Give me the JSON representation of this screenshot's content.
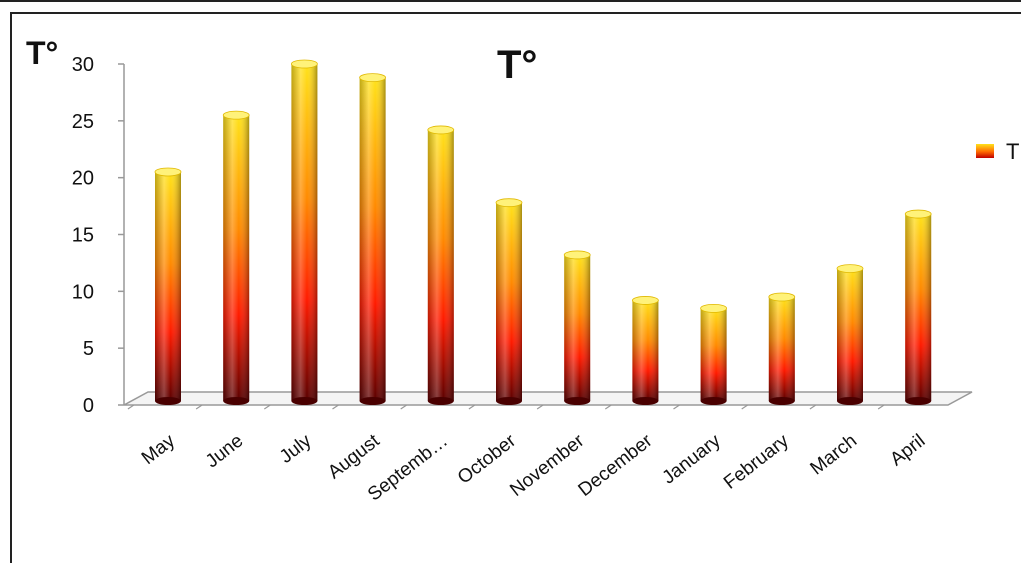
{
  "chart_data": {
    "type": "bar",
    "title": "T°",
    "ylabel": "T°",
    "xlabel": "",
    "categories": [
      "May",
      "June",
      "July",
      "August",
      "Septemb…",
      "October",
      "November",
      "December",
      "January",
      "February",
      "March",
      "April"
    ],
    "series": [
      {
        "name": "T",
        "values": [
          20.5,
          25.5,
          30,
          28.8,
          24.2,
          17.8,
          13.2,
          9.2,
          8.5,
          9.5,
          12,
          16.8
        ]
      }
    ],
    "ylim": [
      0,
      30
    ],
    "yticks": [
      0,
      5,
      10,
      15,
      20,
      25,
      30
    ],
    "grid": false,
    "legend_position": "right",
    "colors": {
      "top": "#ffe21a",
      "mid": "#ff2200",
      "bottom": "#5a0000",
      "axis": "#999999"
    }
  }
}
